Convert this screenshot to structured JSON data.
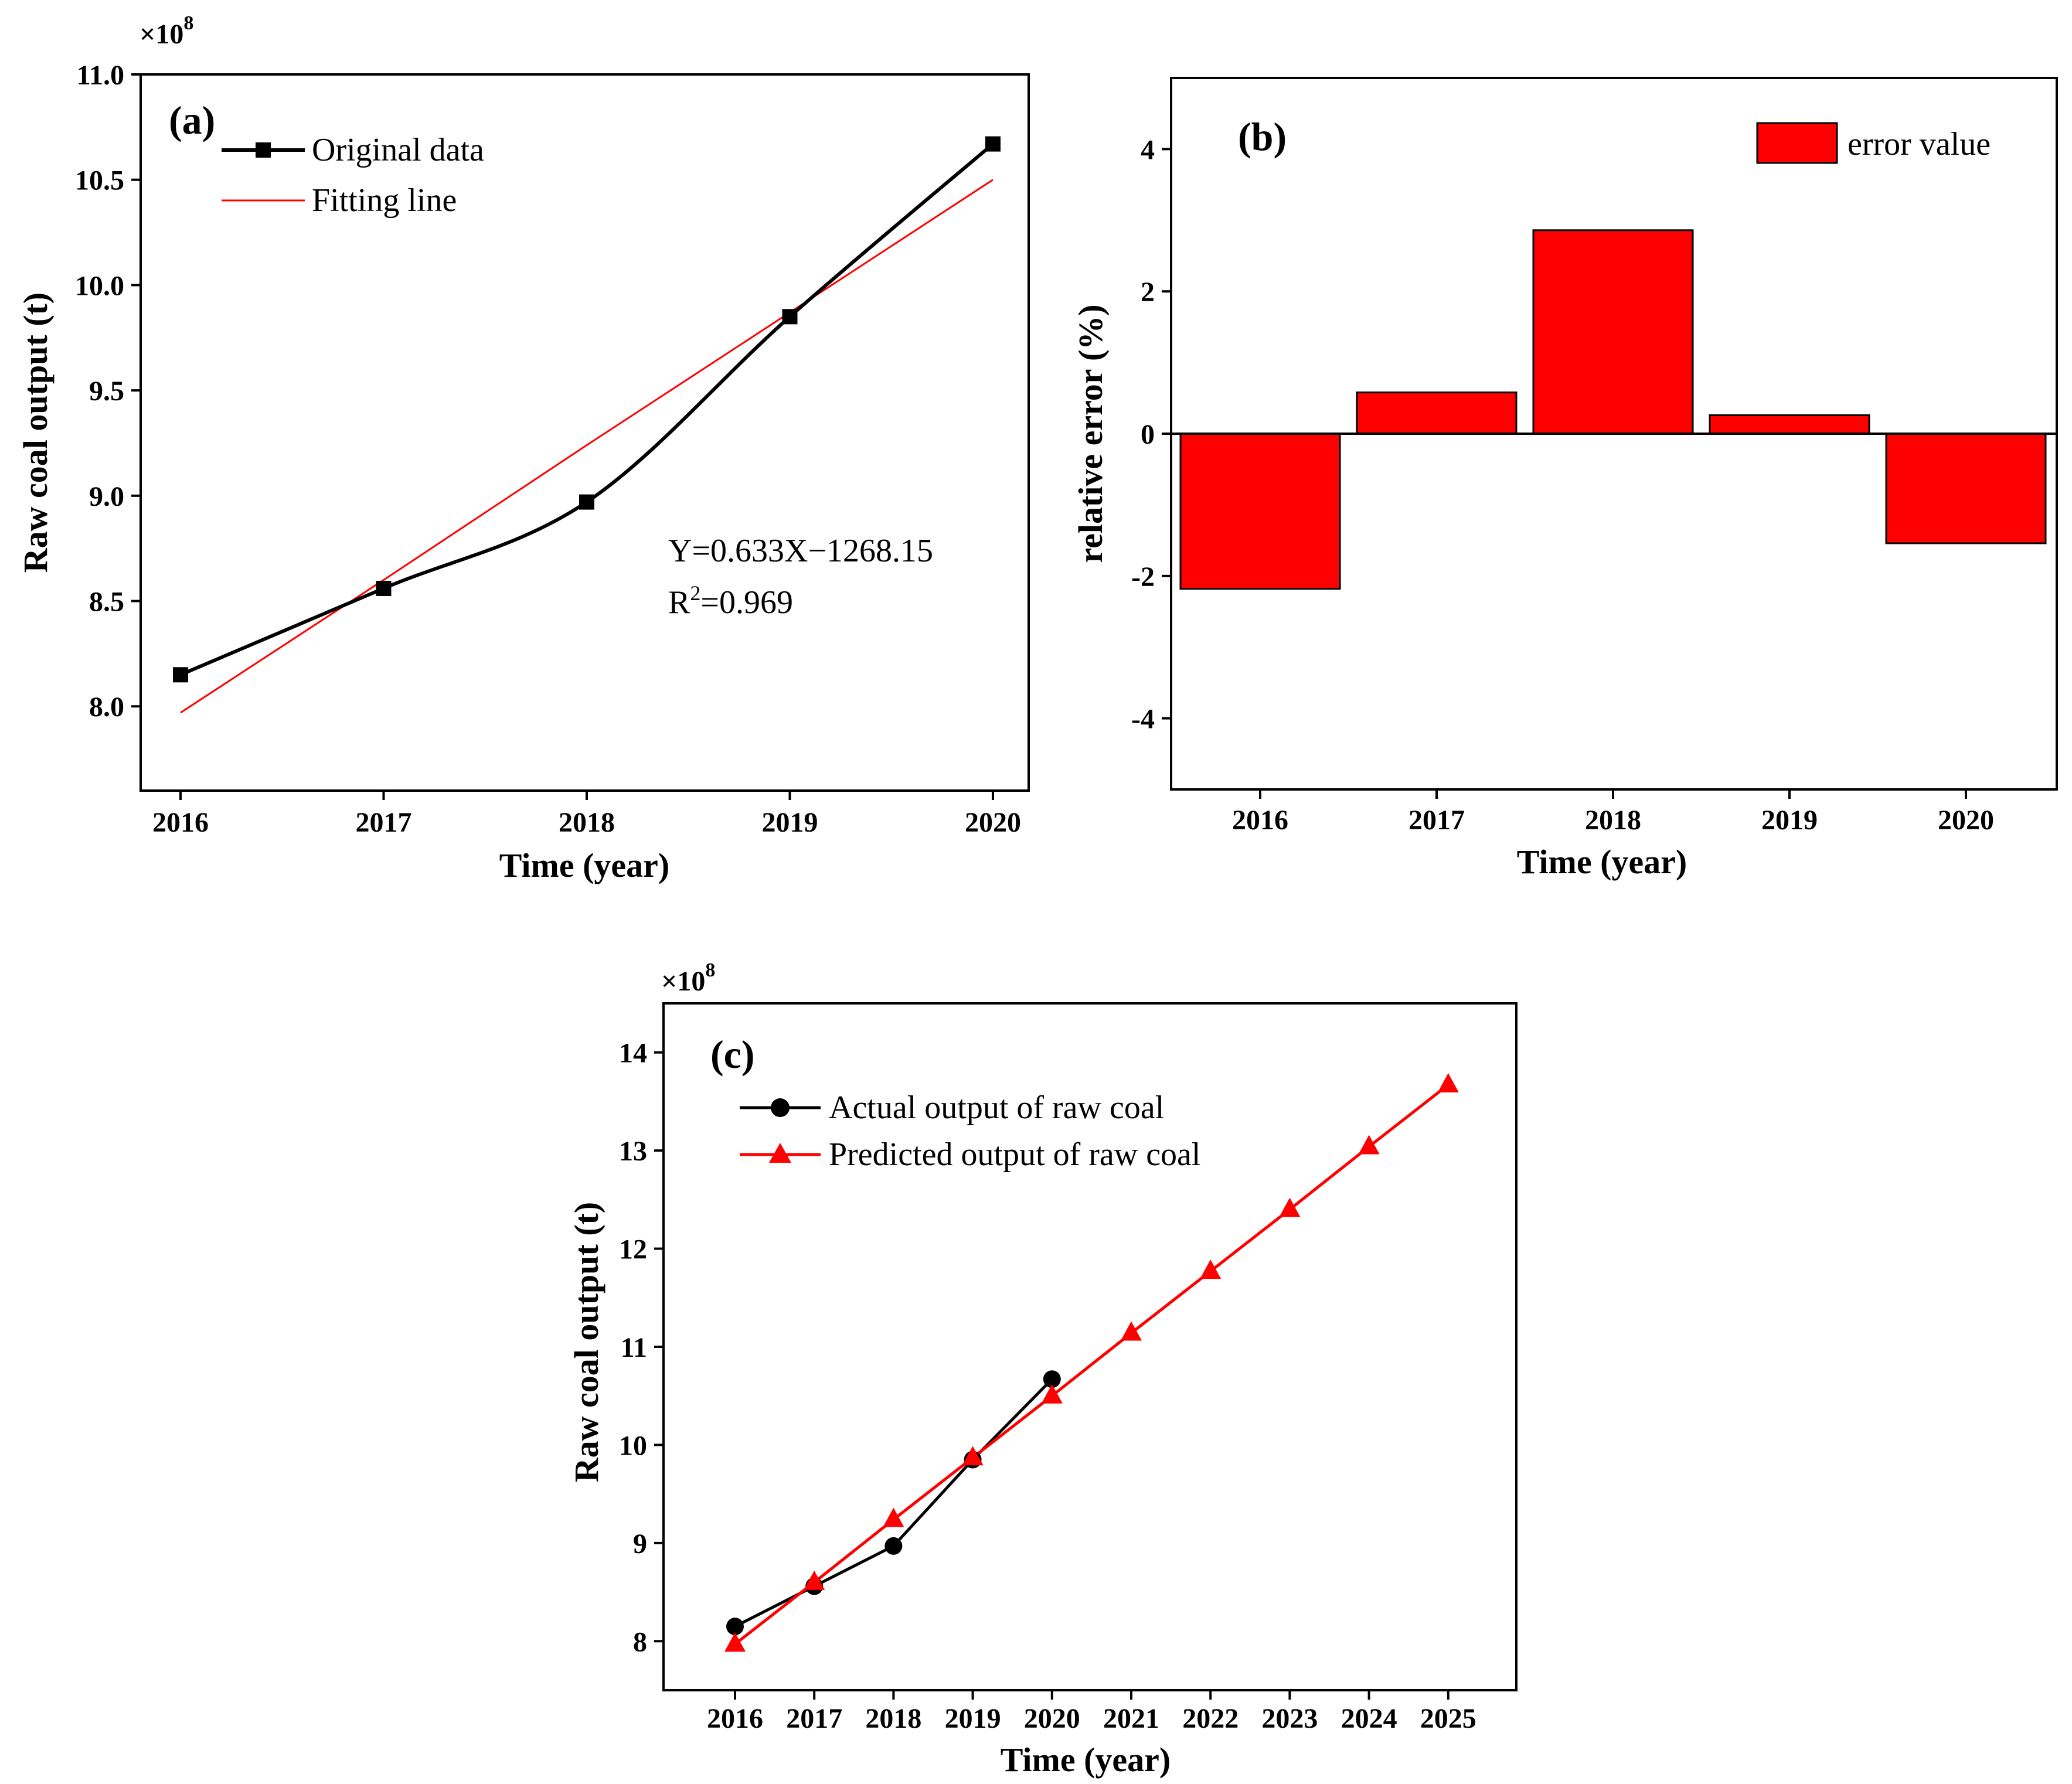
{
  "chart_data": [
    {
      "type": "line",
      "panel_label": "(a)",
      "x": [
        2016,
        2017,
        2018,
        2019,
        2020
      ],
      "xlabel": "Time (year)",
      "ylabel": "Raw coal output (t)",
      "y_multiplier": "×10",
      "y_multiplier_exp": "8",
      "ylim": [
        7.6,
        11.0
      ],
      "yticks": [
        "8.0",
        "8.5",
        "9.0",
        "9.5",
        "10.0",
        "10.5",
        "11.0"
      ],
      "xticks": [
        "2016",
        "2017",
        "2018",
        "2019",
        "2020"
      ],
      "series": [
        {
          "name": "Original data",
          "color": "#000000",
          "marker": "square",
          "values": [
            8.15,
            8.56,
            8.97,
            9.85,
            10.67
          ]
        },
        {
          "name": "Fitting line",
          "color": "#ff0000",
          "marker": "none",
          "values": [
            7.97,
            8.6,
            9.24,
            9.87,
            10.5
          ]
        }
      ],
      "equation": "Y=0.633X−1268.15",
      "r2_prefix": "R",
      "r2_sup": "2",
      "r2_suffix": "=0.969"
    },
    {
      "type": "bar",
      "panel_label": "(b)",
      "categories": [
        "2016",
        "2017",
        "2018",
        "2019",
        "2020"
      ],
      "xlabel": "Time (year)",
      "ylabel": "relative error (%)",
      "ylim": [
        -5,
        5
      ],
      "yticks": [
        "-4",
        "-2",
        "0",
        "2",
        "4"
      ],
      "series": [
        {
          "name": "error value",
          "color": "#ff0000",
          "values": [
            -2.18,
            0.58,
            2.86,
            0.26,
            -1.54
          ]
        }
      ]
    },
    {
      "type": "line",
      "panel_label": "(c)",
      "xlabel": "Time (year)",
      "ylabel": "Raw coal output (t)",
      "y_multiplier": "×10",
      "y_multiplier_exp": "8",
      "ylim": [
        7.5,
        14.5
      ],
      "yticks": [
        "8",
        "9",
        "10",
        "11",
        "12",
        "13",
        "14"
      ],
      "xticks": [
        "2016",
        "2017",
        "2018",
        "2019",
        "2020",
        "2021",
        "2022",
        "2023",
        "2024",
        "2025"
      ],
      "series": [
        {
          "name": "Actual output of raw coal",
          "color": "#000000",
          "marker": "circle",
          "x": [
            2016,
            2017,
            2018,
            2019,
            2020
          ],
          "values": [
            8.15,
            8.56,
            8.97,
            9.85,
            10.67
          ]
        },
        {
          "name": "Predicted output of raw coal",
          "color": "#ff0000",
          "marker": "triangle",
          "x": [
            2016,
            2017,
            2018,
            2019,
            2020,
            2021,
            2022,
            2023,
            2024,
            2025
          ],
          "values": [
            7.97,
            8.6,
            9.24,
            9.87,
            10.5,
            11.14,
            11.77,
            12.4,
            13.04,
            13.67
          ]
        }
      ]
    }
  ]
}
